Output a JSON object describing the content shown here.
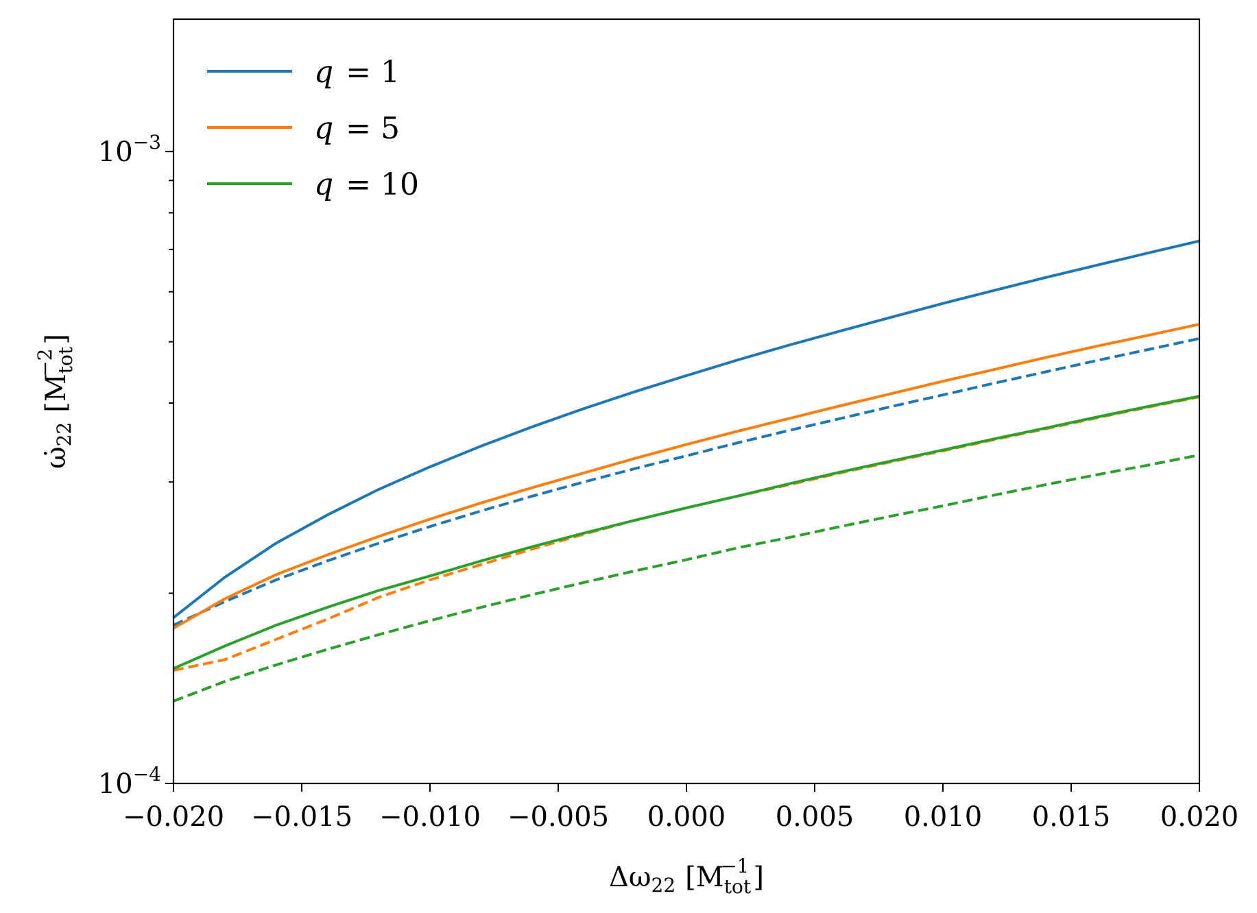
{
  "chart_data": {
    "type": "line",
    "xlabel": "Δω₂₂ [M_tot⁻¹]",
    "xlabel_parts": {
      "main": "Δω",
      "sub": "22",
      "unit_open": "[M",
      "unit_sub": "tot",
      "unit_sup": "−1",
      "unit_close": "]"
    },
    "ylabel": "ω̇₂₂ [M_tot⁻²]",
    "ylabel_parts": {
      "main": "ω̇",
      "sub": "22",
      "unit_open": "[M",
      "unit_sub": "tot",
      "unit_sup": "−2",
      "unit_close": "]"
    },
    "xlim": [
      -0.02,
      0.02
    ],
    "ylim": [
      0.0001,
      0.00162
    ],
    "yscale": "log",
    "grid": false,
    "legend_position": "top-left",
    "x_ticks": [
      -0.02,
      -0.015,
      -0.01,
      -0.005,
      0.0,
      0.005,
      0.01,
      0.015,
      0.02
    ],
    "x_tick_labels": [
      "−0.020",
      "−0.015",
      "−0.010",
      "−0.005",
      "0.000",
      "0.005",
      "0.010",
      "0.015",
      "0.020"
    ],
    "y_major_ticks": [
      {
        "value": 0.0001,
        "base": "10",
        "exp": "−4"
      },
      {
        "value": 0.001,
        "base": "10",
        "exp": "−3"
      }
    ],
    "y_minor_ticks": [
      0.0002,
      0.0003,
      0.0004,
      0.0005,
      0.0006,
      0.0007,
      0.0008,
      0.0009
    ],
    "x": [
      -0.02,
      -0.018,
      -0.016,
      -0.014,
      -0.012,
      -0.01,
      -0.008,
      -0.006,
      -0.004,
      -0.002,
      0.0,
      0.002,
      0.004,
      0.006,
      0.008,
      0.01,
      0.012,
      0.014,
      0.016,
      0.018,
      0.02
    ],
    "series": [
      {
        "name": "q = 1",
        "legend_var": "q",
        "legend_value": "1",
        "color": "#1f77b4",
        "style": "solid",
        "values": [
          0.000183,
          0.000212,
          0.00024,
          0.000266,
          0.000292,
          0.000317,
          0.000342,
          0.000367,
          0.000392,
          0.000417,
          0.000442,
          0.000468,
          0.000494,
          0.00052,
          0.000547,
          0.000575,
          0.000603,
          0.000632,
          0.000661,
          0.000691,
          0.000722
        ]
      },
      {
        "name": "q = 1 (dashed)",
        "color": "#1f77b4",
        "style": "dashed",
        "values": [
          0.000178,
          0.000194,
          0.00021,
          0.000225,
          0.00024,
          0.000255,
          0.00027,
          0.000285,
          0.0003,
          0.000315,
          0.00033,
          0.000346,
          0.000362,
          0.000378,
          0.000395,
          0.000412,
          0.00043,
          0.000448,
          0.000467,
          0.000486,
          0.000506
        ]
      },
      {
        "name": "q = 5",
        "legend_var": "q",
        "legend_value": "5",
        "color": "#ff7f0e",
        "style": "solid",
        "values": [
          0.000176,
          0.000196,
          0.000214,
          0.00023,
          0.000246,
          0.000262,
          0.000278,
          0.000294,
          0.00031,
          0.000327,
          0.000344,
          0.000361,
          0.000378,
          0.000396,
          0.000414,
          0.000433,
          0.000452,
          0.000472,
          0.000492,
          0.000512,
          0.000533
        ]
      },
      {
        "name": "q = 5 (dashed)",
        "color": "#ff7f0e",
        "style": "dashed",
        "values": [
          0.000151,
          0.000157,
          0.000169,
          0.000182,
          0.000197,
          0.00021,
          0.000222,
          0.000235,
          0.000248,
          0.000261,
          0.000273,
          0.000285,
          0.000297,
          0.00031,
          0.000323,
          0.000336,
          0.00035,
          0.000364,
          0.000379,
          0.000394,
          0.000409
        ]
      },
      {
        "name": "q = 10",
        "legend_var": "q",
        "legend_value": "10",
        "color": "#2ca02c",
        "style": "solid",
        "values": [
          0.000152,
          0.000165,
          0.000178,
          0.00019,
          0.000202,
          0.000213,
          0.000225,
          0.000237,
          0.000249,
          0.000261,
          0.000273,
          0.000285,
          0.000298,
          0.000311,
          0.000324,
          0.000337,
          0.000351,
          0.000365,
          0.00038,
          0.000395,
          0.00041
        ]
      },
      {
        "name": "q = 10 (dashed)",
        "color": "#2ca02c",
        "style": "dashed",
        "values": [
          0.000135,
          0.000145,
          0.000154,
          0.000163,
          0.000172,
          0.000181,
          0.00019,
          0.000199,
          0.000208,
          0.000217,
          0.000226,
          0.000236,
          0.000245,
          0.000255,
          0.000265,
          0.000275,
          0.000286,
          0.000297,
          0.000308,
          0.000319,
          0.000331
        ]
      }
    ]
  }
}
